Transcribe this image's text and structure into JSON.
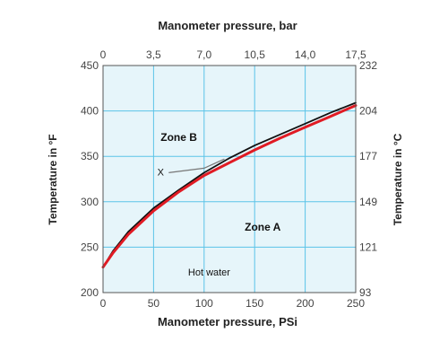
{
  "chart_data": {
    "type": "line",
    "xlabel": "Manometer pressure, PSi",
    "top_xlabel": "Manometer pressure, bar",
    "ylabel": "Temperature in °F",
    "right_ylabel": "Temperature in °C",
    "xlim": [
      0,
      250
    ],
    "ylim": [
      200,
      450
    ],
    "grid": true,
    "plot_background": "#e6f5fa",
    "grid_color": "#5bc4e8",
    "x_ticks": [
      "0",
      "50",
      "100",
      "150",
      "200",
      "250"
    ],
    "y_ticks": [
      "200",
      "250",
      "300",
      "350",
      "400",
      "450"
    ],
    "top_ticks": [
      "0",
      "3,5",
      "7,0",
      "10,5",
      "14,0",
      "17,5"
    ],
    "right_ticks": [
      "93",
      "121",
      "149",
      "177",
      "204",
      "232"
    ],
    "series": [
      {
        "color": "#e01b24",
        "x": [
          0,
          10,
          25,
          50,
          75,
          100,
          125,
          150,
          175,
          200,
          225,
          250
        ],
        "y": [
          228,
          244,
          264,
          290,
          311,
          329,
          343,
          357,
          370,
          382,
          394,
          406
        ]
      },
      {
        "color": "#111111",
        "x": [
          0,
          10,
          25,
          50,
          75,
          100,
          125,
          150,
          175,
          200,
          225,
          250
        ],
        "y": [
          228,
          246,
          267,
          293,
          313,
          332,
          348,
          362,
          374,
          386,
          398,
          409
        ]
      }
    ],
    "annotations": [
      {
        "text": "Zone B",
        "x": 75,
        "y": 367,
        "bold": true
      },
      {
        "text": "Zone A",
        "x": 158,
        "y": 268,
        "bold": true
      },
      {
        "text": "X",
        "x": 57,
        "y": 329,
        "bold": false
      },
      {
        "text": "Hot water",
        "x": 105,
        "y": 219,
        "bold": false
      }
    ],
    "x_marker_line": {
      "x": [
        65,
        100,
        120
      ],
      "y": [
        332,
        337,
        347
      ]
    }
  }
}
